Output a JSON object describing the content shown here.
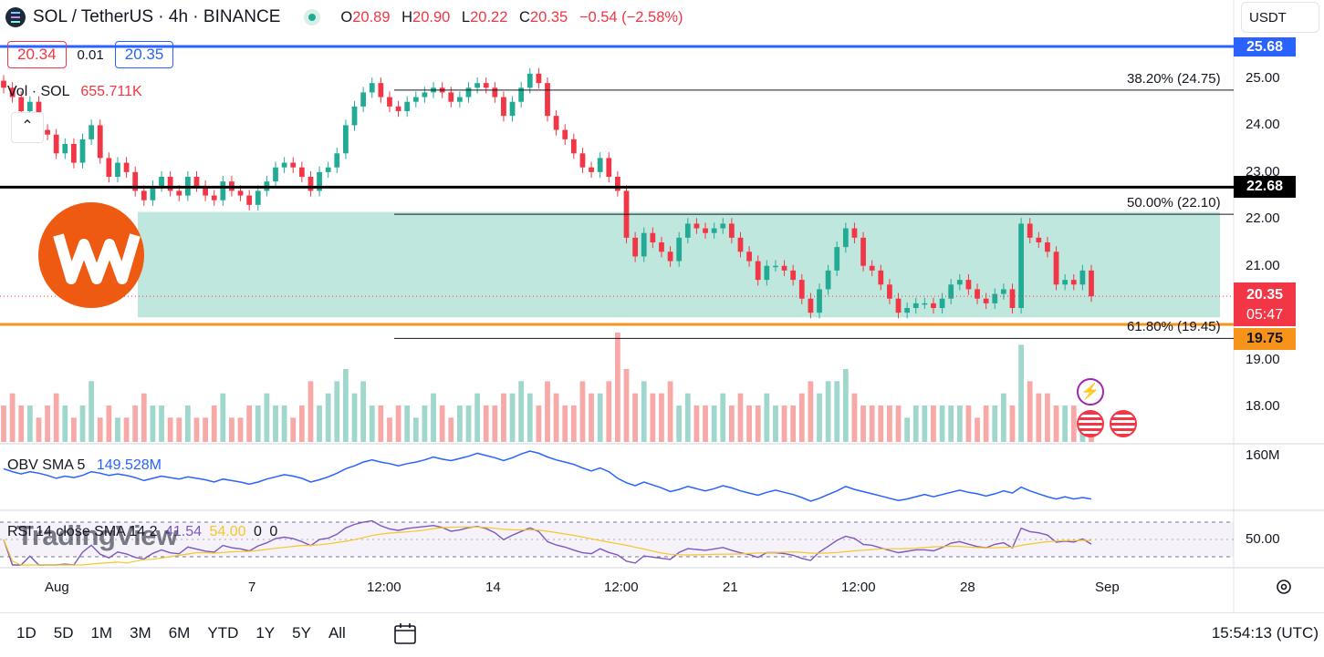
{
  "header": {
    "symbol": "SOL / TetherUS · 4h · BINANCE",
    "ohlc": {
      "o_label": "O",
      "o": "20.89",
      "h_label": "H",
      "h": "20.90",
      "l_label": "L",
      "l": "20.22",
      "c_label": "C",
      "c": "20.35",
      "change": "−0.54 (−2.58%)"
    },
    "currency": "USDT",
    "bid": "20.34",
    "spread": "0.01",
    "ask": "20.35"
  },
  "volume_legend": {
    "label": "Vol · SOL",
    "value": "655.711K"
  },
  "obv_legend": {
    "label": "OBV SMA 5",
    "value": "149.528M"
  },
  "rsi_legend": {
    "label": "RSI 14 close SMA 14 2",
    "v1": "41.54",
    "v2": "54.00",
    "v3": "0",
    "v4": "0"
  },
  "watermark": "TradingView",
  "colors": {
    "up": "#22ab94",
    "down": "#f23645",
    "accent_blue": "#2962ff",
    "orange": "#f7931a",
    "zone": "#b9e4da",
    "black_line": "#000000"
  },
  "price_axis": [
    "25.00",
    "24.00",
    "23.00",
    "22.00",
    "21.00",
    "19.00",
    "18.00"
  ],
  "obv_axis": "160M",
  "rsi_axis": "50.00",
  "time_axis": [
    "Aug",
    "7",
    "12:00",
    "14",
    "12:00",
    "21",
    "12:00",
    "28",
    "Sep"
  ],
  "price_tags": {
    "top_blue": "25.68",
    "black": "22.68",
    "current": "20.35",
    "countdown": "05:47",
    "orange": "19.75"
  },
  "fib_labels": [
    "38.20% (24.75)",
    "50.00% (22.10)",
    "61.80% (19.45)"
  ],
  "bottom_bar": {
    "ranges": [
      "1D",
      "5D",
      "1M",
      "3M",
      "6M",
      "YTD",
      "1Y",
      "5Y",
      "All"
    ],
    "clock": "15:54:13 (UTC)"
  },
  "chart_data": {
    "type": "candlestick",
    "symbol": "SOLUSDT",
    "interval": "4h",
    "ylim": [
      17.3,
      25.9
    ],
    "horizontal_lines": [
      {
        "price": 25.68,
        "color": "#2962ff"
      },
      {
        "price": 22.68,
        "color": "#000000"
      },
      {
        "price": 19.75,
        "color": "#f7931a"
      }
    ],
    "fib_levels": [
      {
        "pct": "38.20%",
        "price": 24.75
      },
      {
        "pct": "50.00%",
        "price": 22.1
      },
      {
        "pct": "61.80%",
        "price": 19.45
      }
    ],
    "range_zone": {
      "low": 19.9,
      "high": 22.15
    },
    "last_price": 20.35,
    "closes": [
      24.8,
      24.6,
      24.3,
      24.5,
      23.9,
      23.8,
      23.4,
      23.6,
      23.2,
      23.7,
      24.0,
      23.3,
      22.9,
      23.2,
      23.0,
      22.6,
      22.4,
      22.7,
      22.9,
      22.6,
      22.5,
      22.9,
      22.7,
      22.5,
      22.4,
      22.8,
      22.6,
      22.5,
      22.3,
      22.6,
      22.8,
      23.1,
      23.2,
      23.1,
      22.9,
      22.6,
      23.0,
      23.1,
      23.4,
      24.0,
      24.4,
      24.7,
      24.9,
      24.6,
      24.4,
      24.3,
      24.5,
      24.6,
      24.7,
      24.8,
      24.7,
      24.5,
      24.6,
      24.8,
      24.9,
      24.8,
      24.6,
      24.2,
      24.5,
      24.8,
      25.1,
      24.9,
      24.2,
      23.9,
      23.7,
      23.4,
      23.1,
      23.0,
      23.3,
      22.9,
      22.6,
      21.6,
      21.2,
      21.7,
      21.5,
      21.3,
      21.1,
      21.6,
      21.9,
      21.8,
      21.7,
      21.8,
      21.9,
      21.6,
      21.3,
      21.1,
      20.7,
      21.0,
      21.0,
      20.9,
      20.7,
      20.3,
      20.0,
      20.5,
      20.9,
      21.4,
      21.8,
      21.6,
      21.0,
      20.9,
      20.6,
      20.3,
      20.0,
      20.1,
      20.2,
      20.2,
      20.1,
      20.3,
      20.6,
      20.7,
      20.5,
      20.3,
      20.2,
      20.4,
      20.5,
      20.1,
      21.9,
      21.6,
      21.5,
      21.3,
      20.6,
      20.7,
      20.6,
      20.9,
      20.35
    ],
    "volume": [
      3,
      4,
      3,
      3,
      2,
      3,
      4,
      3,
      2,
      3,
      5,
      2,
      3,
      2,
      2,
      3,
      4,
      3,
      3,
      2,
      2,
      3,
      2,
      2,
      3,
      4,
      2,
      2,
      3,
      3,
      4,
      3,
      3,
      2,
      3,
      5,
      3,
      4,
      5,
      6,
      4,
      5,
      3,
      3,
      2,
      3,
      3,
      2,
      3,
      4,
      3,
      2,
      3,
      3,
      4,
      3,
      3,
      4,
      4,
      5,
      4,
      3,
      5,
      4,
      3,
      3,
      5,
      4,
      4,
      5,
      9,
      6,
      4,
      5,
      4,
      4,
      5,
      3,
      4,
      3,
      3,
      3,
      4,
      3,
      4,
      3,
      3,
      4,
      3,
      3,
      3,
      4,
      5,
      4,
      5,
      5,
      6,
      4,
      3,
      3,
      3,
      3,
      3,
      2,
      3,
      3,
      3,
      3,
      3,
      3,
      3,
      2,
      3,
      3,
      4,
      3,
      8,
      5,
      4,
      4,
      3,
      3,
      3,
      2,
      2
    ]
  }
}
